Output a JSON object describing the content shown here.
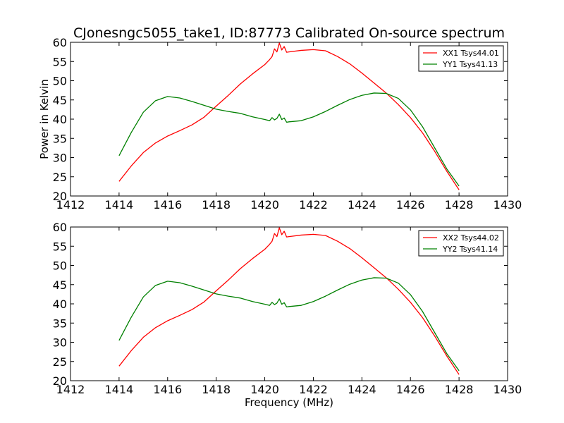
{
  "figure_title": "CJonesngc5055_take1, ID:87773 Calibrated On-source spectrum",
  "chart_data": [
    {
      "type": "line",
      "title": "CJonesngc5055_take1, ID:87773 Calibrated On-source spectrum",
      "xlabel": "",
      "ylabel": "Power in Kelvin",
      "xlim": [
        1412,
        1430
      ],
      "ylim": [
        20,
        60
      ],
      "xticks": [
        "1412",
        "1414",
        "1416",
        "1418",
        "1420",
        "1422",
        "1424",
        "1426",
        "1428",
        "1430"
      ],
      "yticks": [
        "20",
        "25",
        "30",
        "35",
        "40",
        "45",
        "50",
        "55",
        "60"
      ],
      "grid": false,
      "legend_position": "top-right",
      "series": [
        {
          "name": "XX1 Tsys44.01",
          "color": "#ff0000",
          "x": [
            1414.0,
            1414.5,
            1415.0,
            1415.5,
            1416.0,
            1416.5,
            1417.0,
            1417.5,
            1418.0,
            1418.5,
            1419.0,
            1419.5,
            1420.0,
            1420.2,
            1420.3,
            1420.4,
            1420.5,
            1420.6,
            1420.7,
            1420.8,
            1420.9,
            1421.0,
            1421.5,
            1422.0,
            1422.5,
            1423.0,
            1423.5,
            1424.0,
            1424.5,
            1425.0,
            1425.5,
            1426.0,
            1426.5,
            1427.0,
            1427.5,
            1428.0
          ],
          "y": [
            23.8,
            27.8,
            31.3,
            33.8,
            35.6,
            37.0,
            38.5,
            40.5,
            43.4,
            46.2,
            49.2,
            51.8,
            54.2,
            55.5,
            56.3,
            58.3,
            57.5,
            59.8,
            58.0,
            58.9,
            57.4,
            57.5,
            57.9,
            58.1,
            57.8,
            56.3,
            54.4,
            52.0,
            49.4,
            46.8,
            43.8,
            40.4,
            36.4,
            31.6,
            26.4,
            21.6
          ]
        },
        {
          "name": "YY1 Tsys41.13",
          "color": "#008000",
          "x": [
            1414.0,
            1414.5,
            1415.0,
            1415.5,
            1416.0,
            1416.5,
            1417.0,
            1417.5,
            1418.0,
            1418.5,
            1419.0,
            1419.5,
            1420.0,
            1420.2,
            1420.3,
            1420.4,
            1420.5,
            1420.6,
            1420.7,
            1420.8,
            1420.9,
            1421.0,
            1421.5,
            1422.0,
            1422.5,
            1423.0,
            1423.5,
            1424.0,
            1424.5,
            1425.0,
            1425.5,
            1426.0,
            1426.5,
            1427.0,
            1427.5,
            1428.0
          ],
          "y": [
            30.5,
            36.5,
            41.8,
            44.8,
            45.9,
            45.5,
            44.6,
            43.6,
            42.6,
            42.0,
            41.5,
            40.6,
            39.9,
            39.6,
            40.4,
            39.8,
            40.2,
            41.3,
            39.9,
            40.3,
            39.2,
            39.3,
            39.6,
            40.6,
            42.0,
            43.6,
            45.1,
            46.2,
            46.8,
            46.7,
            45.4,
            42.4,
            38.0,
            32.5,
            27.0,
            22.6
          ]
        }
      ]
    },
    {
      "type": "line",
      "title": "",
      "xlabel": "Frequency (MHz)",
      "ylabel": "",
      "xlim": [
        1412,
        1430
      ],
      "ylim": [
        20,
        60
      ],
      "xticks": [
        "1412",
        "1414",
        "1416",
        "1418",
        "1420",
        "1422",
        "1424",
        "1426",
        "1428",
        "1430"
      ],
      "yticks": [
        "20",
        "25",
        "30",
        "35",
        "40",
        "45",
        "50",
        "55",
        "60"
      ],
      "grid": false,
      "legend_position": "top-right",
      "series": [
        {
          "name": "XX2 Tsys44.02",
          "color": "#ff0000",
          "x": [
            1414.0,
            1414.5,
            1415.0,
            1415.5,
            1416.0,
            1416.5,
            1417.0,
            1417.5,
            1418.0,
            1418.5,
            1419.0,
            1419.5,
            1420.0,
            1420.2,
            1420.3,
            1420.4,
            1420.5,
            1420.6,
            1420.7,
            1420.8,
            1420.9,
            1421.0,
            1421.5,
            1422.0,
            1422.5,
            1423.0,
            1423.5,
            1424.0,
            1424.5,
            1425.0,
            1425.5,
            1426.0,
            1426.5,
            1427.0,
            1427.5,
            1428.0
          ],
          "y": [
            23.8,
            27.8,
            31.3,
            33.8,
            35.6,
            37.0,
            38.5,
            40.5,
            43.4,
            46.2,
            49.2,
            51.8,
            54.2,
            55.5,
            56.3,
            58.3,
            57.5,
            59.8,
            58.0,
            58.9,
            57.4,
            57.5,
            57.9,
            58.1,
            57.8,
            56.3,
            54.4,
            52.0,
            49.4,
            46.8,
            43.8,
            40.4,
            36.4,
            31.6,
            26.4,
            21.6
          ]
        },
        {
          "name": "YY2 Tsys41.14",
          "color": "#008000",
          "x": [
            1414.0,
            1414.5,
            1415.0,
            1415.5,
            1416.0,
            1416.5,
            1417.0,
            1417.5,
            1418.0,
            1418.5,
            1419.0,
            1419.5,
            1420.0,
            1420.2,
            1420.3,
            1420.4,
            1420.5,
            1420.6,
            1420.7,
            1420.8,
            1420.9,
            1421.0,
            1421.5,
            1422.0,
            1422.5,
            1423.0,
            1423.5,
            1424.0,
            1424.5,
            1425.0,
            1425.5,
            1426.0,
            1426.5,
            1427.0,
            1427.5,
            1428.0
          ],
          "y": [
            30.5,
            36.5,
            41.8,
            44.8,
            45.9,
            45.5,
            44.6,
            43.6,
            42.6,
            42.0,
            41.5,
            40.6,
            39.9,
            39.6,
            40.4,
            39.8,
            40.2,
            41.3,
            39.9,
            40.3,
            39.2,
            39.3,
            39.6,
            40.6,
            42.0,
            43.6,
            45.1,
            46.2,
            46.8,
            46.7,
            45.4,
            42.4,
            38.0,
            32.5,
            27.0,
            22.6
          ]
        }
      ]
    }
  ]
}
